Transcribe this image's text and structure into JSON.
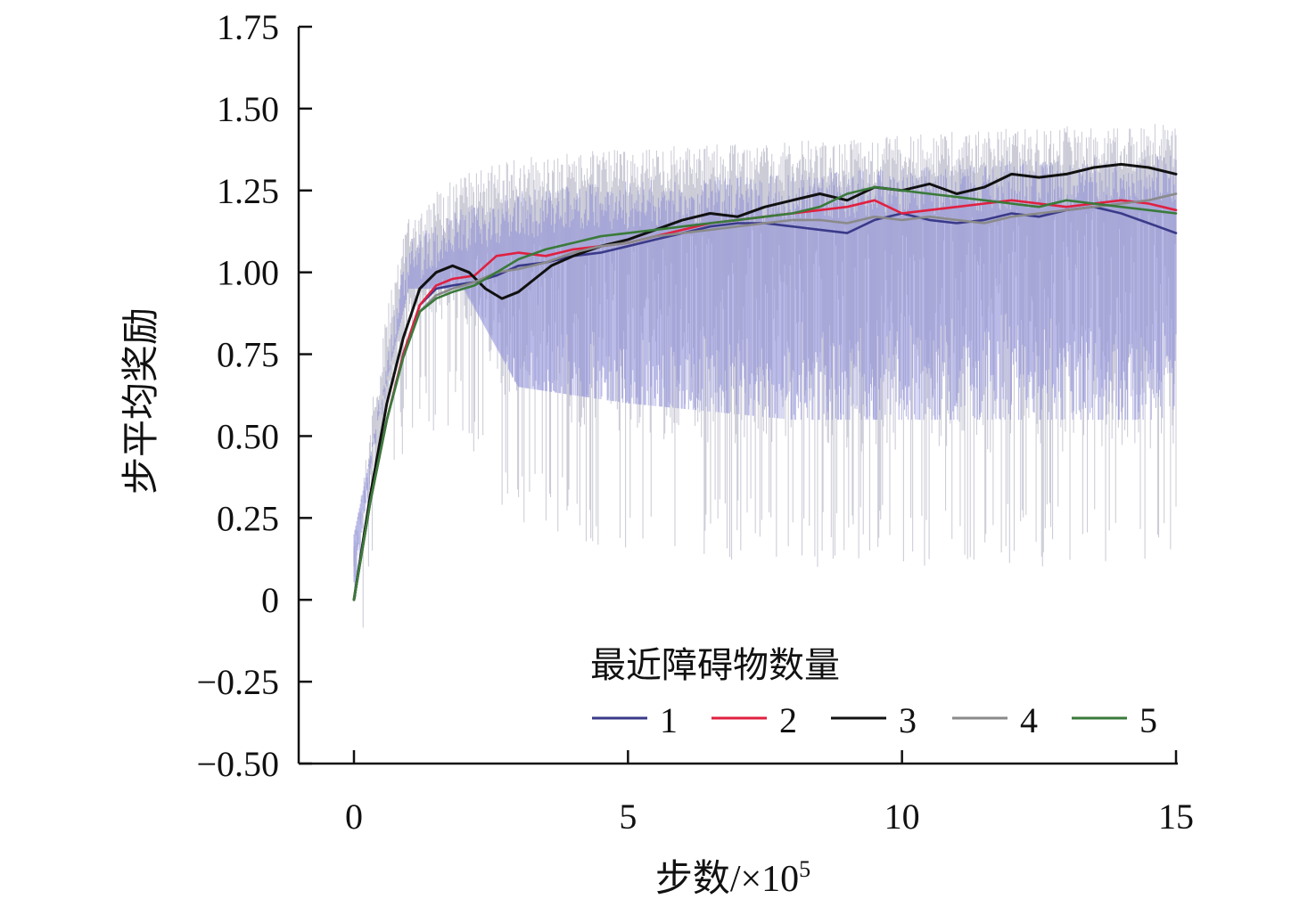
{
  "chart_data": {
    "type": "line",
    "xlabel": "步数/×10",
    "xlabel_sup": "5",
    "ylabel": "步平均奖励",
    "xlim": [
      -0.5,
      15
    ],
    "ylim": [
      -0.5,
      1.75
    ],
    "x_ticks": [
      0,
      5,
      10,
      15
    ],
    "x_tick_labels": [
      "0",
      "5",
      "10",
      "15"
    ],
    "y_ticks": [
      -0.5,
      -0.25,
      0,
      0.25,
      0.5,
      0.75,
      1.0,
      1.25,
      1.5,
      1.75
    ],
    "y_tick_labels": [
      "−0.50",
      "−0.25",
      "0",
      "0.25",
      "0.50",
      "0.75",
      "1.00",
      "1.25",
      "1.50",
      "1.75"
    ],
    "legend": {
      "title": "最近障碍物数量",
      "placement": "bottom-right",
      "entries": [
        "1",
        "2",
        "3",
        "4",
        "5"
      ]
    },
    "raw_band": {
      "colors": [
        "#b8b8c8",
        "#8a8ad8"
      ],
      "upper": [
        [
          0,
          0.2
        ],
        [
          0.5,
          0.8
        ],
        [
          1,
          1.2
        ],
        [
          2,
          1.3
        ],
        [
          3,
          1.35
        ],
        [
          5,
          1.38
        ],
        [
          8,
          1.4
        ],
        [
          10,
          1.42
        ],
        [
          12,
          1.44
        ],
        [
          15,
          1.46
        ]
      ],
      "lower": [
        [
          0,
          -0.25
        ],
        [
          0.5,
          0.15
        ],
        [
          1,
          0.5
        ],
        [
          2,
          0.5
        ],
        [
          3,
          0.2
        ],
        [
          5,
          0.15
        ],
        [
          8,
          0.1
        ],
        [
          10,
          0.1
        ],
        [
          12,
          0.1
        ],
        [
          15,
          0.1
        ]
      ]
    },
    "series": [
      {
        "name": "1",
        "color": "#3a3a8a",
        "x": [
          0,
          0.3,
          0.6,
          0.9,
          1.2,
          1.5,
          1.8,
          2.2,
          2.6,
          3.0,
          3.5,
          4.0,
          4.5,
          5.0,
          5.5,
          6.0,
          6.5,
          7.0,
          7.5,
          8.0,
          8.5,
          9.0,
          9.5,
          10.0,
          10.5,
          11.0,
          11.5,
          12.0,
          12.5,
          13.0,
          13.5,
          14.0,
          14.5,
          15.0
        ],
        "y": [
          0.0,
          0.3,
          0.55,
          0.75,
          0.9,
          0.95,
          0.96,
          0.97,
          0.99,
          1.02,
          1.03,
          1.05,
          1.06,
          1.08,
          1.1,
          1.12,
          1.14,
          1.15,
          1.15,
          1.14,
          1.13,
          1.12,
          1.16,
          1.18,
          1.16,
          1.15,
          1.16,
          1.18,
          1.17,
          1.19,
          1.2,
          1.18,
          1.15,
          1.12
        ]
      },
      {
        "name": "2",
        "color": "#e02040",
        "x": [
          0,
          0.3,
          0.6,
          0.9,
          1.2,
          1.5,
          1.8,
          2.2,
          2.6,
          3.0,
          3.5,
          4.0,
          4.5,
          5.0,
          5.5,
          6.0,
          6.5,
          7.0,
          7.5,
          8.0,
          8.5,
          9.0,
          9.5,
          10.0,
          10.5,
          11.0,
          11.5,
          12.0,
          12.5,
          13.0,
          13.5,
          14.0,
          14.5,
          15.0
        ],
        "y": [
          0.0,
          0.3,
          0.55,
          0.75,
          0.9,
          0.96,
          0.98,
          0.99,
          1.05,
          1.06,
          1.05,
          1.07,
          1.08,
          1.09,
          1.11,
          1.13,
          1.15,
          1.16,
          1.17,
          1.18,
          1.19,
          1.2,
          1.22,
          1.18,
          1.19,
          1.2,
          1.21,
          1.22,
          1.21,
          1.2,
          1.21,
          1.22,
          1.21,
          1.19
        ]
      },
      {
        "name": "3",
        "color": "#111111",
        "x": [
          0,
          0.3,
          0.6,
          0.9,
          1.2,
          1.5,
          1.8,
          2.1,
          2.4,
          2.7,
          3.0,
          3.3,
          3.6,
          4.0,
          4.5,
          5.0,
          5.5,
          6.0,
          6.5,
          7.0,
          7.5,
          8.0,
          8.5,
          9.0,
          9.5,
          10.0,
          10.5,
          11.0,
          11.5,
          12.0,
          12.5,
          13.0,
          13.5,
          14.0,
          14.5,
          15.0
        ],
        "y": [
          0.0,
          0.32,
          0.6,
          0.8,
          0.95,
          1.0,
          1.02,
          1.0,
          0.95,
          0.92,
          0.94,
          0.98,
          1.02,
          1.05,
          1.08,
          1.1,
          1.13,
          1.16,
          1.18,
          1.17,
          1.2,
          1.22,
          1.24,
          1.22,
          1.26,
          1.25,
          1.27,
          1.24,
          1.26,
          1.3,
          1.29,
          1.3,
          1.32,
          1.33,
          1.32,
          1.3
        ]
      },
      {
        "name": "4",
        "color": "#8a8a8a",
        "x": [
          0,
          0.3,
          0.6,
          0.9,
          1.2,
          1.5,
          1.8,
          2.2,
          2.6,
          3.0,
          3.5,
          4.0,
          4.5,
          5.0,
          5.5,
          6.0,
          6.5,
          7.0,
          7.5,
          8.0,
          8.5,
          9.0,
          9.5,
          10.0,
          10.5,
          11.0,
          11.5,
          12.0,
          12.5,
          13.0,
          13.5,
          14.0,
          14.5,
          15.0
        ],
        "y": [
          0.0,
          0.3,
          0.55,
          0.74,
          0.88,
          0.93,
          0.95,
          0.97,
          1.0,
          1.01,
          1.03,
          1.06,
          1.08,
          1.09,
          1.11,
          1.12,
          1.13,
          1.14,
          1.15,
          1.16,
          1.16,
          1.15,
          1.17,
          1.16,
          1.17,
          1.16,
          1.15,
          1.17,
          1.18,
          1.19,
          1.2,
          1.21,
          1.22,
          1.24
        ]
      },
      {
        "name": "5",
        "color": "#3a7a3a",
        "x": [
          0,
          0.3,
          0.6,
          0.9,
          1.2,
          1.5,
          1.8,
          2.2,
          2.6,
          3.0,
          3.5,
          4.0,
          4.5,
          5.0,
          5.5,
          6.0,
          6.5,
          7.0,
          7.5,
          8.0,
          8.5,
          9.0,
          9.5,
          10.0,
          10.5,
          11.0,
          11.5,
          12.0,
          12.5,
          13.0,
          13.5,
          14.0,
          14.5,
          15.0
        ],
        "y": [
          0.0,
          0.3,
          0.55,
          0.74,
          0.88,
          0.92,
          0.94,
          0.96,
          1.0,
          1.04,
          1.07,
          1.09,
          1.11,
          1.12,
          1.13,
          1.14,
          1.15,
          1.16,
          1.17,
          1.18,
          1.2,
          1.24,
          1.26,
          1.25,
          1.24,
          1.23,
          1.22,
          1.21,
          1.2,
          1.22,
          1.21,
          1.2,
          1.19,
          1.18
        ]
      }
    ]
  }
}
